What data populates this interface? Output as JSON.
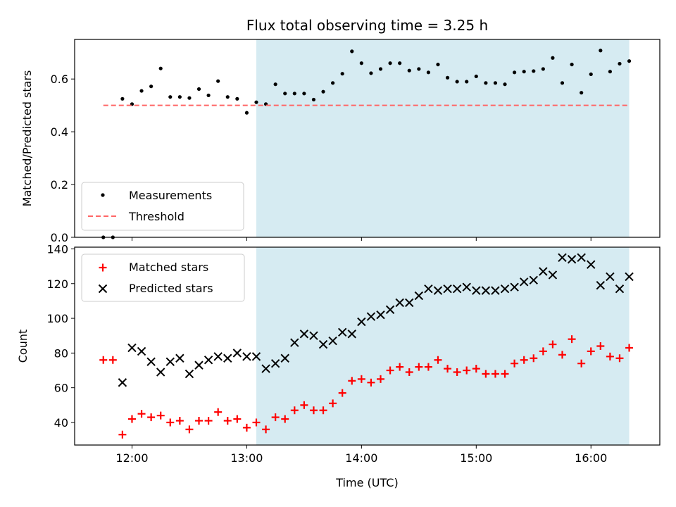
{
  "chart_data": [
    {
      "type": "scatter",
      "title": "Flux total observing time = 3.25 h",
      "ylabel": "Matched/Predicted stars",
      "xlabel": "",
      "ylim": [
        0,
        0.75
      ],
      "yticks": [
        "0.0",
        "0.2",
        "0.4",
        "0.6"
      ],
      "ytick_values": [
        0,
        0.2,
        0.4,
        0.6
      ],
      "highlight_span": {
        "x_start": "13:05",
        "x_end": "16:20",
        "color": "#add8e6"
      },
      "threshold": {
        "name": "Threshold",
        "value": 0.5,
        "x_start": "11:45",
        "x_end": "16:20",
        "color": "#ff6666",
        "style": "dashed"
      },
      "series": [
        {
          "name": "Measurements",
          "marker": "dot",
          "color": "#000000",
          "x": [
            "11:45",
            "11:50",
            "11:55",
            "12:00",
            "12:05",
            "12:10",
            "12:15",
            "12:20",
            "12:25",
            "12:30",
            "12:35",
            "12:40",
            "12:45",
            "12:50",
            "12:55",
            "13:00",
            "13:05",
            "13:10",
            "13:15",
            "13:20",
            "13:25",
            "13:30",
            "13:35",
            "13:40",
            "13:45",
            "13:50",
            "13:55",
            "14:00",
            "14:05",
            "14:10",
            "14:15",
            "14:20",
            "14:25",
            "14:30",
            "14:35",
            "14:40",
            "14:45",
            "14:50",
            "14:55",
            "15:00",
            "15:05",
            "15:10",
            "15:15",
            "15:20",
            "15:25",
            "15:30",
            "15:35",
            "15:40",
            "15:45",
            "15:50",
            "15:55",
            "16:00",
            "16:05",
            "16:10",
            "16:15",
            "16:20"
          ],
          "y": [
            0.0,
            0.0,
            0.525,
            0.505,
            0.555,
            0.572,
            0.64,
            0.532,
            0.532,
            0.528,
            0.562,
            0.538,
            0.592,
            0.532,
            0.525,
            0.472,
            0.512,
            0.505,
            0.58,
            0.545,
            0.545,
            0.545,
            0.522,
            0.552,
            0.585,
            0.62,
            0.705,
            0.66,
            0.622,
            0.638,
            0.66,
            0.66,
            0.632,
            0.638,
            0.625,
            0.655,
            0.605,
            0.59,
            0.59,
            0.61,
            0.585,
            0.585,
            0.58,
            0.625,
            0.628,
            0.63,
            0.638,
            0.68,
            0.585,
            0.655,
            0.548,
            0.618,
            0.708,
            0.628,
            0.658,
            0.668
          ]
        }
      ],
      "legend": {
        "placement": "lower-left",
        "entries": [
          "Measurements",
          "Threshold"
        ]
      }
    },
    {
      "type": "scatter",
      "title": "",
      "xlabel": "Time (UTC)",
      "ylabel": "Count",
      "xticks": [
        "12:00",
        "13:00",
        "14:00",
        "15:00",
        "16:00"
      ],
      "ylim": [
        27,
        141
      ],
      "yticks": [
        "40",
        "60",
        "80",
        "100",
        "120",
        "140"
      ],
      "ytick_values": [
        40,
        60,
        80,
        100,
        120,
        140
      ],
      "highlight_span": {
        "x_start": "13:05",
        "x_end": "16:20",
        "color": "#add8e6"
      },
      "series": [
        {
          "name": "Matched stars",
          "marker": "plus",
          "color": "#ff0000",
          "x": [
            "11:45",
            "11:50",
            "11:55",
            "12:00",
            "12:05",
            "12:10",
            "12:15",
            "12:20",
            "12:25",
            "12:30",
            "12:35",
            "12:40",
            "12:45",
            "12:50",
            "12:55",
            "13:00",
            "13:05",
            "13:10",
            "13:15",
            "13:20",
            "13:25",
            "13:30",
            "13:35",
            "13:40",
            "13:45",
            "13:50",
            "13:55",
            "14:00",
            "14:05",
            "14:10",
            "14:15",
            "14:20",
            "14:25",
            "14:30",
            "14:35",
            "14:40",
            "14:45",
            "14:50",
            "14:55",
            "15:00",
            "15:05",
            "15:10",
            "15:15",
            "15:20",
            "15:25",
            "15:30",
            "15:35",
            "15:40",
            "15:45",
            "15:50",
            "15:55",
            "16:00",
            "16:05",
            "16:10",
            "16:15",
            "16:20"
          ],
          "y": [
            76,
            76,
            33,
            42,
            45,
            43,
            44,
            40,
            41,
            36,
            41,
            41,
            46,
            41,
            42,
            37,
            40,
            36,
            43,
            42,
            47,
            50,
            47,
            47,
            51,
            57,
            64,
            65,
            63,
            65,
            70,
            72,
            69,
            72,
            72,
            76,
            71,
            69,
            70,
            71,
            68,
            68,
            68,
            74,
            76,
            77,
            81,
            85,
            79,
            88,
            74,
            81,
            84,
            78,
            77,
            83
          ]
        },
        {
          "name": "Predicted stars",
          "marker": "cross",
          "color": "#000000",
          "x": [
            "11:55",
            "12:00",
            "12:05",
            "12:10",
            "12:15",
            "12:20",
            "12:25",
            "12:30",
            "12:35",
            "12:40",
            "12:45",
            "12:50",
            "12:55",
            "13:00",
            "13:05",
            "13:10",
            "13:15",
            "13:20",
            "13:25",
            "13:30",
            "13:35",
            "13:40",
            "13:45",
            "13:50",
            "13:55",
            "14:00",
            "14:05",
            "14:10",
            "14:15",
            "14:20",
            "14:25",
            "14:30",
            "14:35",
            "14:40",
            "14:45",
            "14:50",
            "14:55",
            "15:00",
            "15:05",
            "15:10",
            "15:15",
            "15:20",
            "15:25",
            "15:30",
            "15:35",
            "15:40",
            "15:45",
            "15:50",
            "15:55",
            "16:00",
            "16:05",
            "16:10",
            "16:15",
            "16:20"
          ],
          "y": [
            63,
            83,
            81,
            75,
            69,
            75,
            77,
            68,
            73,
            76,
            78,
            77,
            80,
            78,
            78,
            71,
            74,
            77,
            86,
            91,
            90,
            85,
            87,
            92,
            91,
            98,
            101,
            102,
            105,
            109,
            109,
            113,
            117,
            116,
            117,
            117,
            118,
            116,
            116,
            116,
            117,
            118,
            121,
            122,
            127,
            125,
            135,
            134,
            135,
            131,
            119,
            124,
            117,
            124
          ]
        }
      ],
      "legend": {
        "placement": "upper-left",
        "entries": [
          "Matched stars",
          "Predicted stars"
        ]
      }
    }
  ]
}
